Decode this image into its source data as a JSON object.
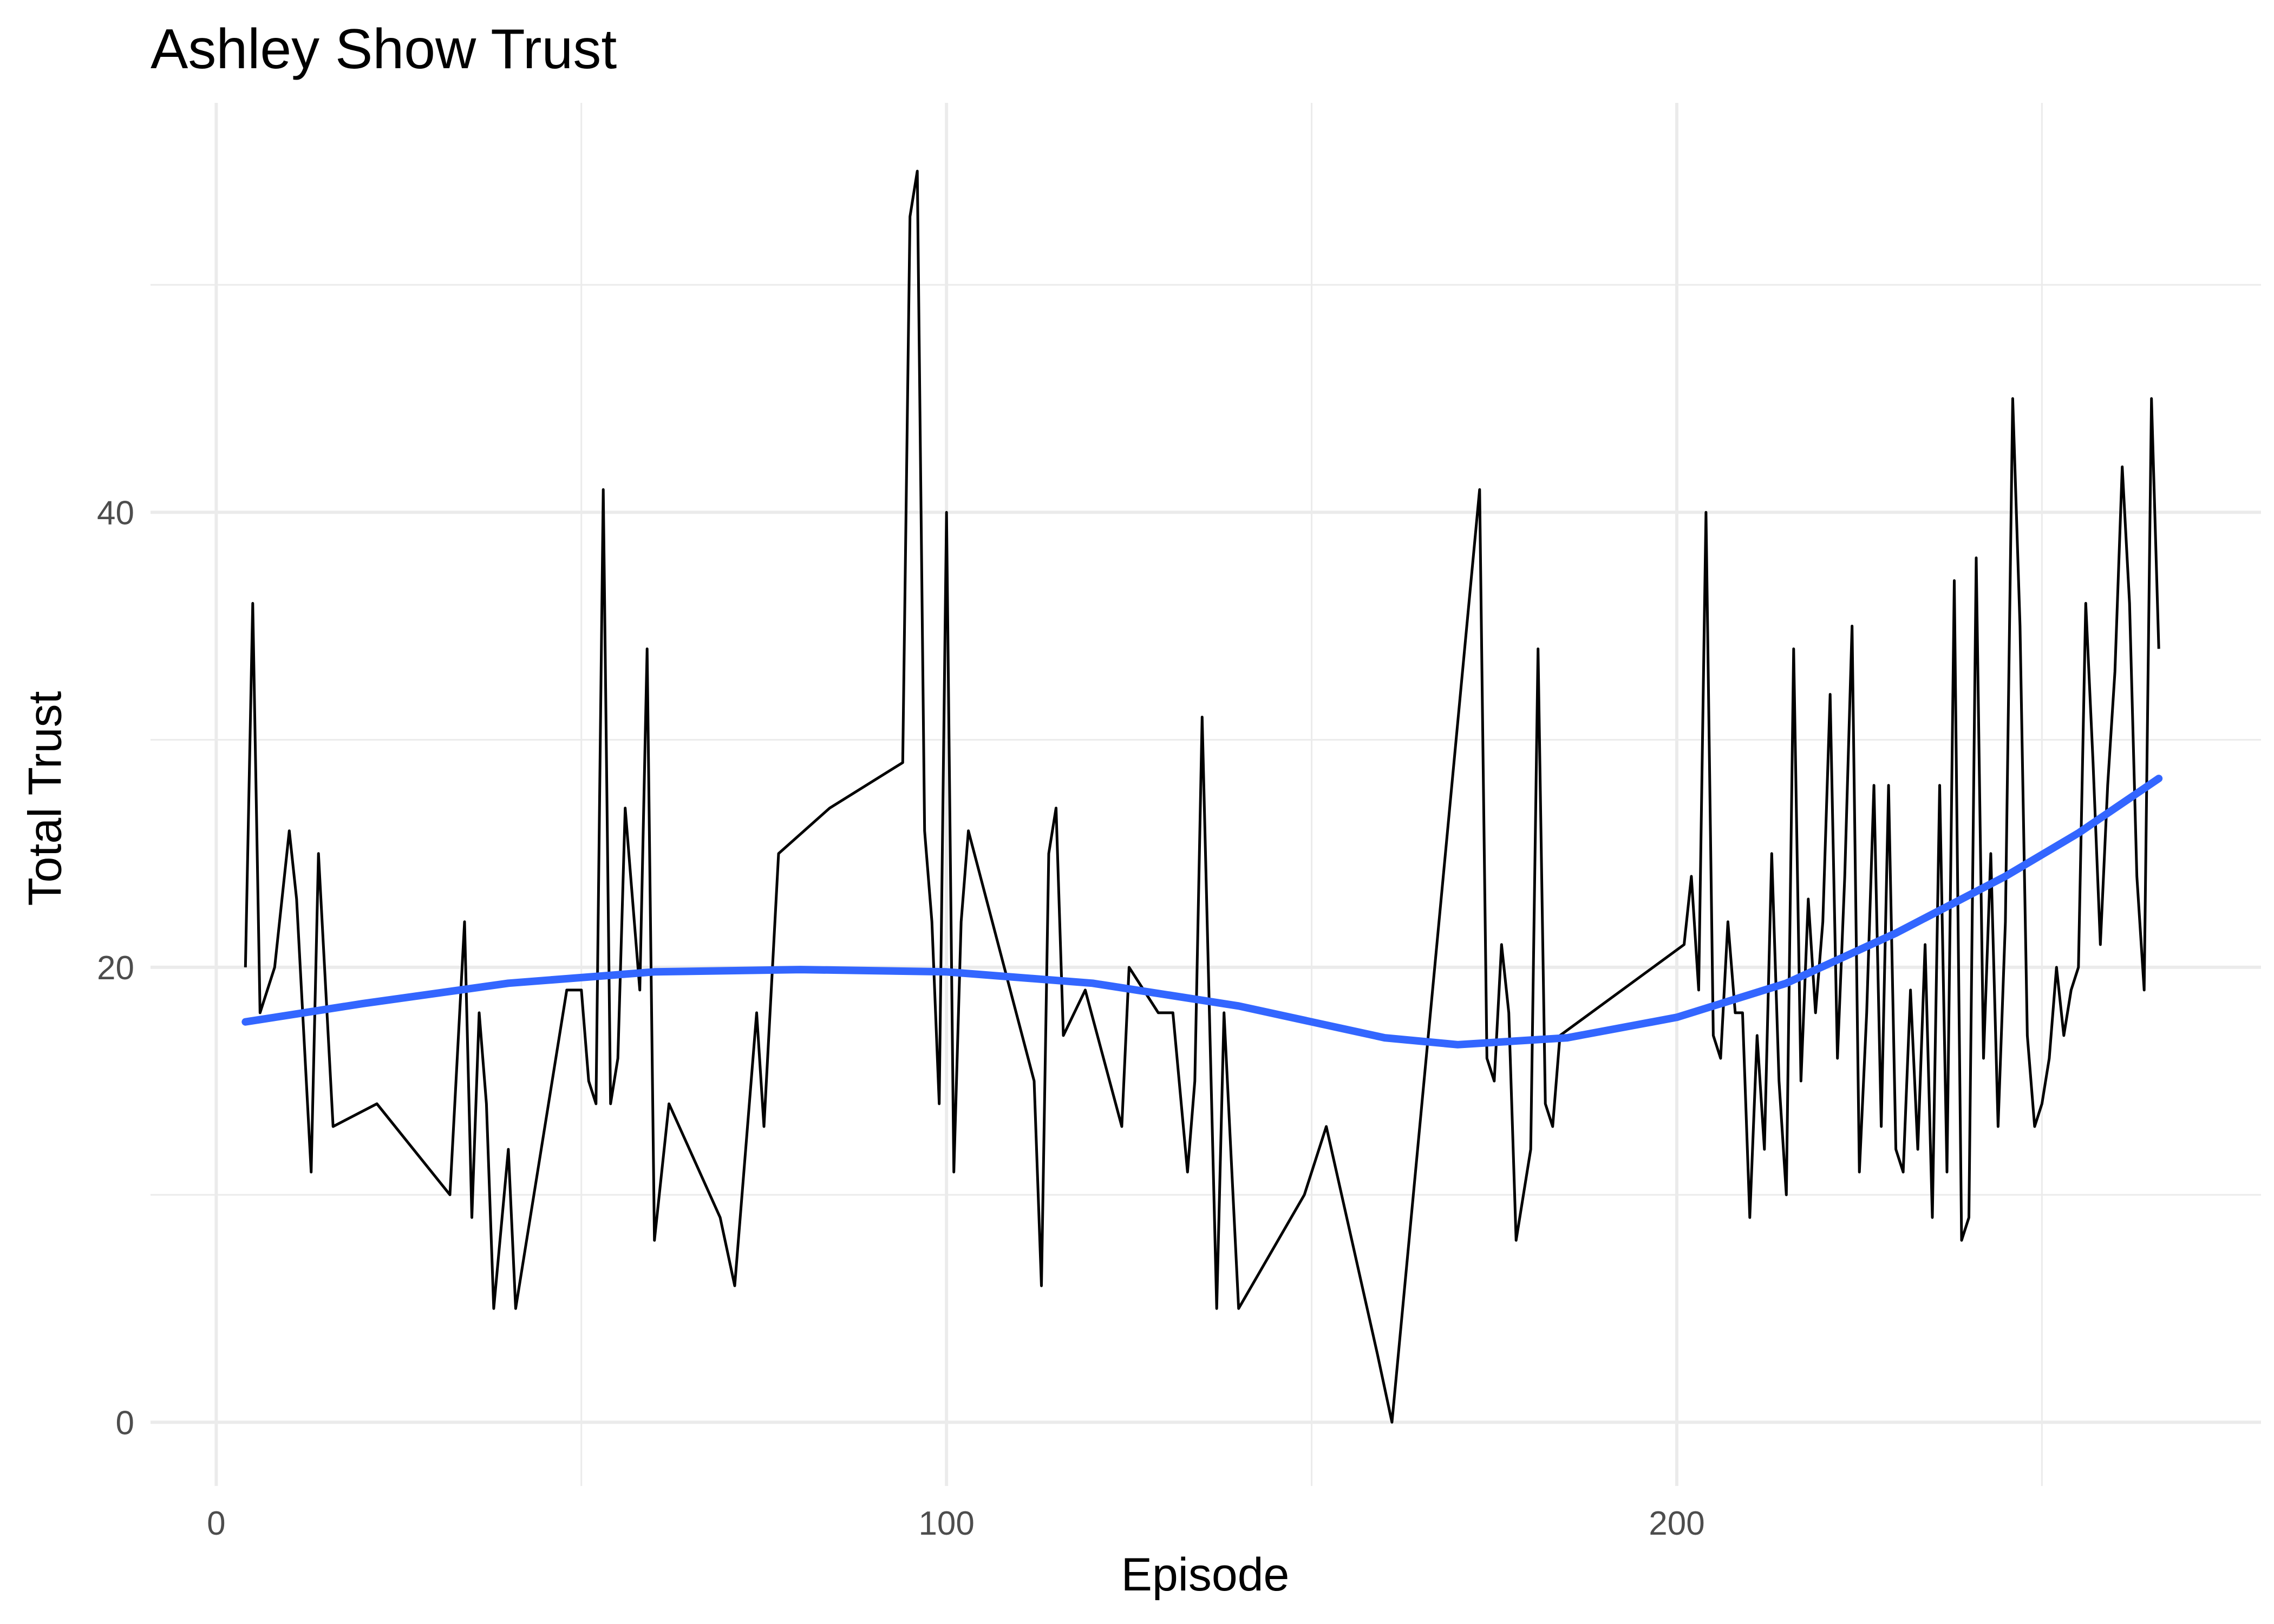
{
  "chart_data": {
    "type": "line",
    "title": "Ashley Show Trust",
    "xlabel": "Episode",
    "ylabel": "Total Trust",
    "xlim": [
      -9,
      280
    ],
    "ylim": [
      -2.8,
      58
    ],
    "x_ticks": [
      0,
      100,
      200
    ],
    "y_ticks": [
      0,
      20,
      40
    ],
    "x_minor": [
      50,
      150,
      250
    ],
    "y_minor": [
      10,
      30,
      50
    ],
    "grid": true,
    "legend": "none",
    "colors": {
      "line": "#000000",
      "smooth": "#3366FF",
      "grid": "#EBEBEB",
      "tick_text": "#4D4D4D"
    },
    "series": [
      {
        "role": "observed",
        "x": [
          4,
          5,
          6,
          8,
          10,
          11,
          13,
          14,
          16,
          22,
          32,
          34,
          35,
          36,
          37,
          38,
          40,
          41,
          48,
          50,
          51,
          52,
          53,
          54,
          55,
          56,
          58,
          59,
          60,
          62,
          69,
          71,
          74,
          75,
          77,
          84,
          94,
          95,
          96,
          97,
          98,
          99,
          100,
          101,
          102,
          103,
          112,
          113,
          114,
          115,
          116,
          119,
          124,
          125,
          129,
          130,
          131,
          133,
          134,
          135,
          137,
          138,
          140,
          149,
          152,
          159,
          161,
          173,
          174,
          175,
          176,
          177,
          178,
          180,
          181,
          182,
          183,
          184,
          201,
          202,
          203,
          204,
          205,
          206,
          207,
          208,
          209,
          210,
          211,
          212,
          213,
          214,
          215,
          216,
          217,
          218,
          219,
          220,
          221,
          222,
          223,
          224,
          225,
          226,
          227,
          228,
          229,
          230,
          231,
          232,
          233,
          234,
          235,
          236,
          237,
          238,
          239,
          240,
          241,
          242,
          243,
          244,
          245,
          246,
          247,
          248,
          249,
          250,
          251,
          252,
          253,
          254,
          255,
          256,
          257,
          258,
          259,
          260,
          261,
          262,
          263,
          264,
          265,
          266
        ],
        "y": [
          20,
          36,
          18,
          20,
          26,
          23,
          11,
          25,
          13,
          14,
          10,
          22,
          9,
          18,
          14,
          5,
          12,
          5,
          19,
          19,
          15,
          14,
          41,
          14,
          16,
          27,
          19,
          34,
          8,
          14,
          9,
          6,
          18,
          13,
          25,
          27,
          29,
          53,
          55,
          26,
          22,
          14,
          40,
          11,
          22,
          26,
          15,
          6,
          25,
          27,
          17,
          19,
          13,
          20,
          18,
          18,
          18,
          11,
          15,
          31,
          5,
          18,
          5,
          10,
          13,
          3,
          0,
          41,
          16,
          15,
          21,
          18,
          8,
          12,
          34,
          14,
          13,
          17,
          21,
          24,
          19,
          40,
          17,
          16,
          22,
          18,
          18,
          9,
          17,
          12,
          25,
          15,
          10,
          34,
          15,
          23,
          18,
          22,
          32,
          16,
          24,
          35,
          11,
          18,
          28,
          13,
          28,
          12,
          11,
          19,
          12,
          21,
          9,
          28,
          11,
          37,
          8,
          9,
          38,
          16,
          25,
          13,
          22,
          45,
          35,
          17,
          13,
          14,
          16,
          20,
          17,
          19,
          20,
          36,
          29,
          21,
          28,
          33,
          42,
          36,
          24,
          19,
          45,
          34
        ]
      },
      {
        "role": "smooth",
        "x": [
          4,
          20,
          40,
          60,
          80,
          100,
          120,
          140,
          160,
          170,
          185,
          200,
          215,
          230,
          245,
          255,
          266
        ],
        "y": [
          17.6,
          18.4,
          19.3,
          19.8,
          19.9,
          19.8,
          19.3,
          18.3,
          16.9,
          16.6,
          16.9,
          17.8,
          19.3,
          21.5,
          24.0,
          25.9,
          28.3
        ]
      }
    ]
  }
}
